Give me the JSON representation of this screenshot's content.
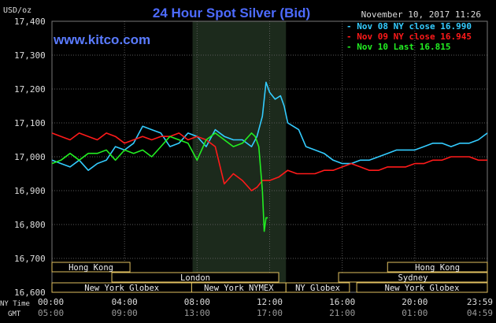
{
  "chart_data": {
    "type": "line",
    "title": "24 Hour Spot Silver (Bid)",
    "timestamp": "November 10, 2017 11:26",
    "watermark": "www.kitco.com",
    "y_unit_label": "USD/oz",
    "ylim": [
      16.6,
      17.4
    ],
    "y_ticks": [
      16.6,
      16.7,
      16.8,
      16.9,
      17.0,
      17.1,
      17.2,
      17.3,
      17.4
    ],
    "y_tick_labels": [
      "16,600",
      "16,700",
      "16,800",
      "16,900",
      "17,000",
      "17,100",
      "17,200",
      "17,300",
      "17,400"
    ],
    "x_range_hours": [
      0,
      24
    ],
    "x_axis_row_labels": [
      "NY Time",
      "GMT"
    ],
    "x_ticks": [
      {
        "x": 0,
        "ny": "00:00",
        "gmt": "05:00"
      },
      {
        "x": 4,
        "ny": "04:00",
        "gmt": "09:00"
      },
      {
        "x": 8,
        "ny": "08:00",
        "gmt": "13:00"
      },
      {
        "x": 12,
        "ny": "12:00",
        "gmt": "17:00"
      },
      {
        "x": 16,
        "ny": "16:00",
        "gmt": "21:00"
      },
      {
        "x": 20,
        "ny": "20:00",
        "gmt": "01:00"
      },
      {
        "x": 24,
        "ny": "23:59",
        "gmt": "04:59"
      }
    ],
    "shaded_region": [
      7.75,
      12.9
    ],
    "legend": [
      {
        "label": "Nov 08 NY close 16.990",
        "color": "#33ccff"
      },
      {
        "label": "Nov 09 NY close 16.945",
        "color": "#ff1a1a"
      },
      {
        "label": "Nov 10 Last 16.815",
        "color": "#22ee22"
      }
    ],
    "sessions": [
      {
        "label": "Hong Kong",
        "start": 0,
        "end": 4.3,
        "row": 0
      },
      {
        "label": "Hong Kong",
        "start": 18.5,
        "end": 24,
        "row": 0
      },
      {
        "label": "London",
        "start": 3.3,
        "end": 12.5,
        "row": 1
      },
      {
        "label": "Sydney",
        "start": 15.8,
        "end": 24,
        "row": 1
      },
      {
        "label": "New York Globex",
        "start": 0,
        "end": 7.7,
        "row": 2
      },
      {
        "label": "New York NYMEX",
        "start": 7.7,
        "end": 12.9,
        "row": 2
      },
      {
        "label": "NY Globex",
        "start": 12.9,
        "end": 16.4,
        "row": 2
      },
      {
        "label": "New York Globex",
        "start": 16.8,
        "end": 24,
        "row": 2
      }
    ],
    "series": [
      {
        "name": "Nov 08 NY close 16.990",
        "color": "#33ccff",
        "x": [
          0,
          0.5,
          1.0,
          1.5,
          2.0,
          2.5,
          3.0,
          3.5,
          4.0,
          4.5,
          5.0,
          5.5,
          6.0,
          6.5,
          7.0,
          7.5,
          8.0,
          8.5,
          9.0,
          9.5,
          10.0,
          10.5,
          11.0,
          11.3,
          11.6,
          11.8,
          12.0,
          12.3,
          12.6,
          12.8,
          13.0,
          13.3,
          13.6,
          14.0,
          14.5,
          15.0,
          15.5,
          16.0,
          16.5,
          17.0,
          17.5,
          18.0,
          18.5,
          19.0,
          19.5,
          20.0,
          20.5,
          21.0,
          21.5,
          22.0,
          22.5,
          23.0,
          23.5,
          24.0
        ],
        "y": [
          16.99,
          16.98,
          16.97,
          16.99,
          16.96,
          16.98,
          16.99,
          17.03,
          17.02,
          17.04,
          17.09,
          17.08,
          17.07,
          17.03,
          17.04,
          17.07,
          17.06,
          17.03,
          17.08,
          17.06,
          17.05,
          17.05,
          17.03,
          17.06,
          17.12,
          17.22,
          17.19,
          17.17,
          17.18,
          17.15,
          17.1,
          17.09,
          17.08,
          17.03,
          17.02,
          17.01,
          16.99,
          16.98,
          16.98,
          16.99,
          16.99,
          17.0,
          17.01,
          17.02,
          17.02,
          17.02,
          17.03,
          17.04,
          17.04,
          17.03,
          17.04,
          17.04,
          17.05,
          17.07
        ]
      },
      {
        "name": "Nov 09 NY close 16.945",
        "color": "#ff1a1a",
        "x": [
          0,
          0.5,
          1.0,
          1.5,
          2.0,
          2.5,
          3.0,
          3.5,
          4.0,
          4.5,
          5.0,
          5.5,
          6.0,
          6.5,
          7.0,
          7.5,
          8.0,
          8.5,
          9.0,
          9.5,
          10.0,
          10.5,
          11.0,
          11.3,
          11.6,
          12.0,
          12.5,
          13.0,
          13.5,
          14.0,
          14.5,
          15.0,
          15.5,
          16.0,
          16.5,
          17.0,
          17.5,
          18.0,
          18.5,
          19.0,
          19.5,
          20.0,
          20.5,
          21.0,
          21.5,
          22.0,
          22.5,
          23.0,
          23.5,
          24.0
        ],
        "y": [
          17.07,
          17.06,
          17.05,
          17.07,
          17.06,
          17.05,
          17.07,
          17.06,
          17.04,
          17.05,
          17.06,
          17.05,
          17.06,
          17.06,
          17.07,
          17.05,
          17.06,
          17.05,
          17.03,
          16.92,
          16.95,
          16.93,
          16.9,
          16.91,
          16.93,
          16.93,
          16.94,
          16.96,
          16.95,
          16.95,
          16.95,
          16.96,
          16.96,
          16.97,
          16.98,
          16.97,
          16.96,
          16.96,
          16.97,
          16.97,
          16.97,
          16.98,
          16.98,
          16.99,
          16.99,
          17.0,
          17.0,
          17.0,
          16.99,
          16.99
        ]
      },
      {
        "name": "Nov 10 Last 16.815",
        "color": "#22ee22",
        "x": [
          0,
          0.5,
          1.0,
          1.5,
          2.0,
          2.5,
          3.0,
          3.5,
          4.0,
          4.5,
          5.0,
          5.5,
          6.0,
          6.5,
          7.0,
          7.5,
          8.0,
          8.5,
          9.0,
          9.5,
          10.0,
          10.5,
          11.0,
          11.2,
          11.4,
          11.6,
          11.7,
          11.8,
          11.9
        ],
        "y": [
          16.98,
          16.99,
          17.01,
          16.99,
          17.01,
          17.01,
          17.02,
          16.99,
          17.02,
          17.01,
          17.02,
          17.0,
          17.03,
          17.06,
          17.05,
          17.04,
          16.99,
          17.05,
          17.07,
          17.05,
          17.03,
          17.04,
          17.07,
          17.06,
          17.03,
          16.9,
          16.78,
          16.82,
          16.82
        ]
      }
    ]
  }
}
